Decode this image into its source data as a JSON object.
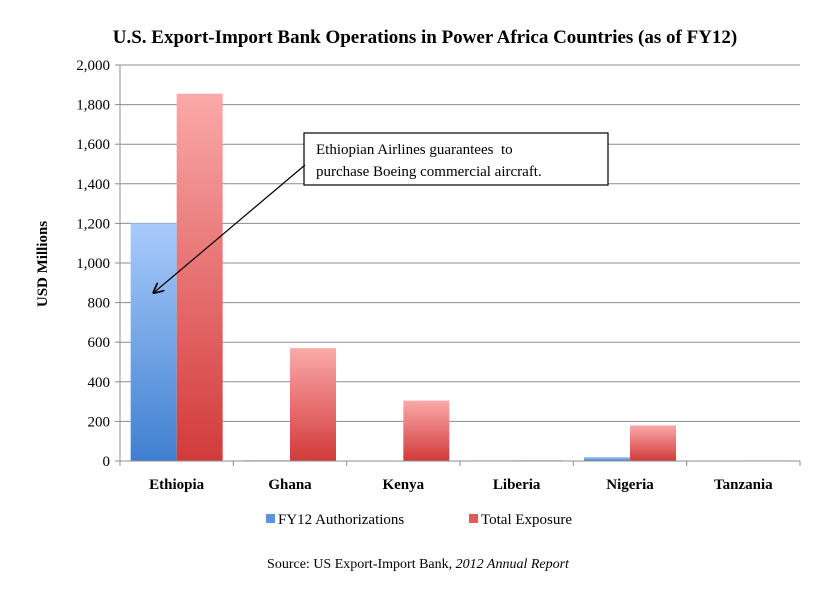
{
  "chart_data": {
    "type": "bar",
    "title": "U.S. Export-Import Bank Operations in Power Africa Countries (as of FY12)",
    "ylabel": "USD Millions",
    "xlabel": "",
    "ylim": [
      0,
      2000
    ],
    "yticks": [
      0,
      200,
      400,
      600,
      800,
      1000,
      1200,
      1400,
      1600,
      1800,
      2000
    ],
    "ytick_labels": [
      "0",
      "200",
      "400",
      "600",
      "800",
      "1,000",
      "1,200",
      "1,400",
      "1,600",
      "1,800",
      "2,000"
    ],
    "grid": true,
    "legend_position": "bottom",
    "categories": [
      "Ethiopia",
      "Ghana",
      "Kenya",
      "Liberia",
      "Nigeria",
      "Tanzania"
    ],
    "series": [
      {
        "name": "FY12 Authorizations",
        "values": [
          1200,
          4,
          0,
          3,
          20,
          0
        ]
      },
      {
        "name": "Total Exposure",
        "values": [
          1855,
          570,
          305,
          4,
          180,
          3
        ]
      }
    ],
    "annotation": {
      "lines": [
        "Ethiopian Airlines guarantees  to",
        "purchase Boeing commercial aircraft."
      ],
      "points_to": {
        "category": "Ethiopia",
        "series": "FY12 Authorizations",
        "value": 870
      }
    },
    "source": {
      "prefix": "Source: US Export-Import Bank, ",
      "italic": "2012 Annual Report"
    }
  },
  "colors": {
    "blue_top": "#a9cbfb",
    "blue_bottom": "#3f7fd0",
    "red_top": "#fba9a9",
    "red_bottom": "#d23a3a",
    "gridline": "#8c8c8c",
    "axis": "#8c8c8c"
  }
}
